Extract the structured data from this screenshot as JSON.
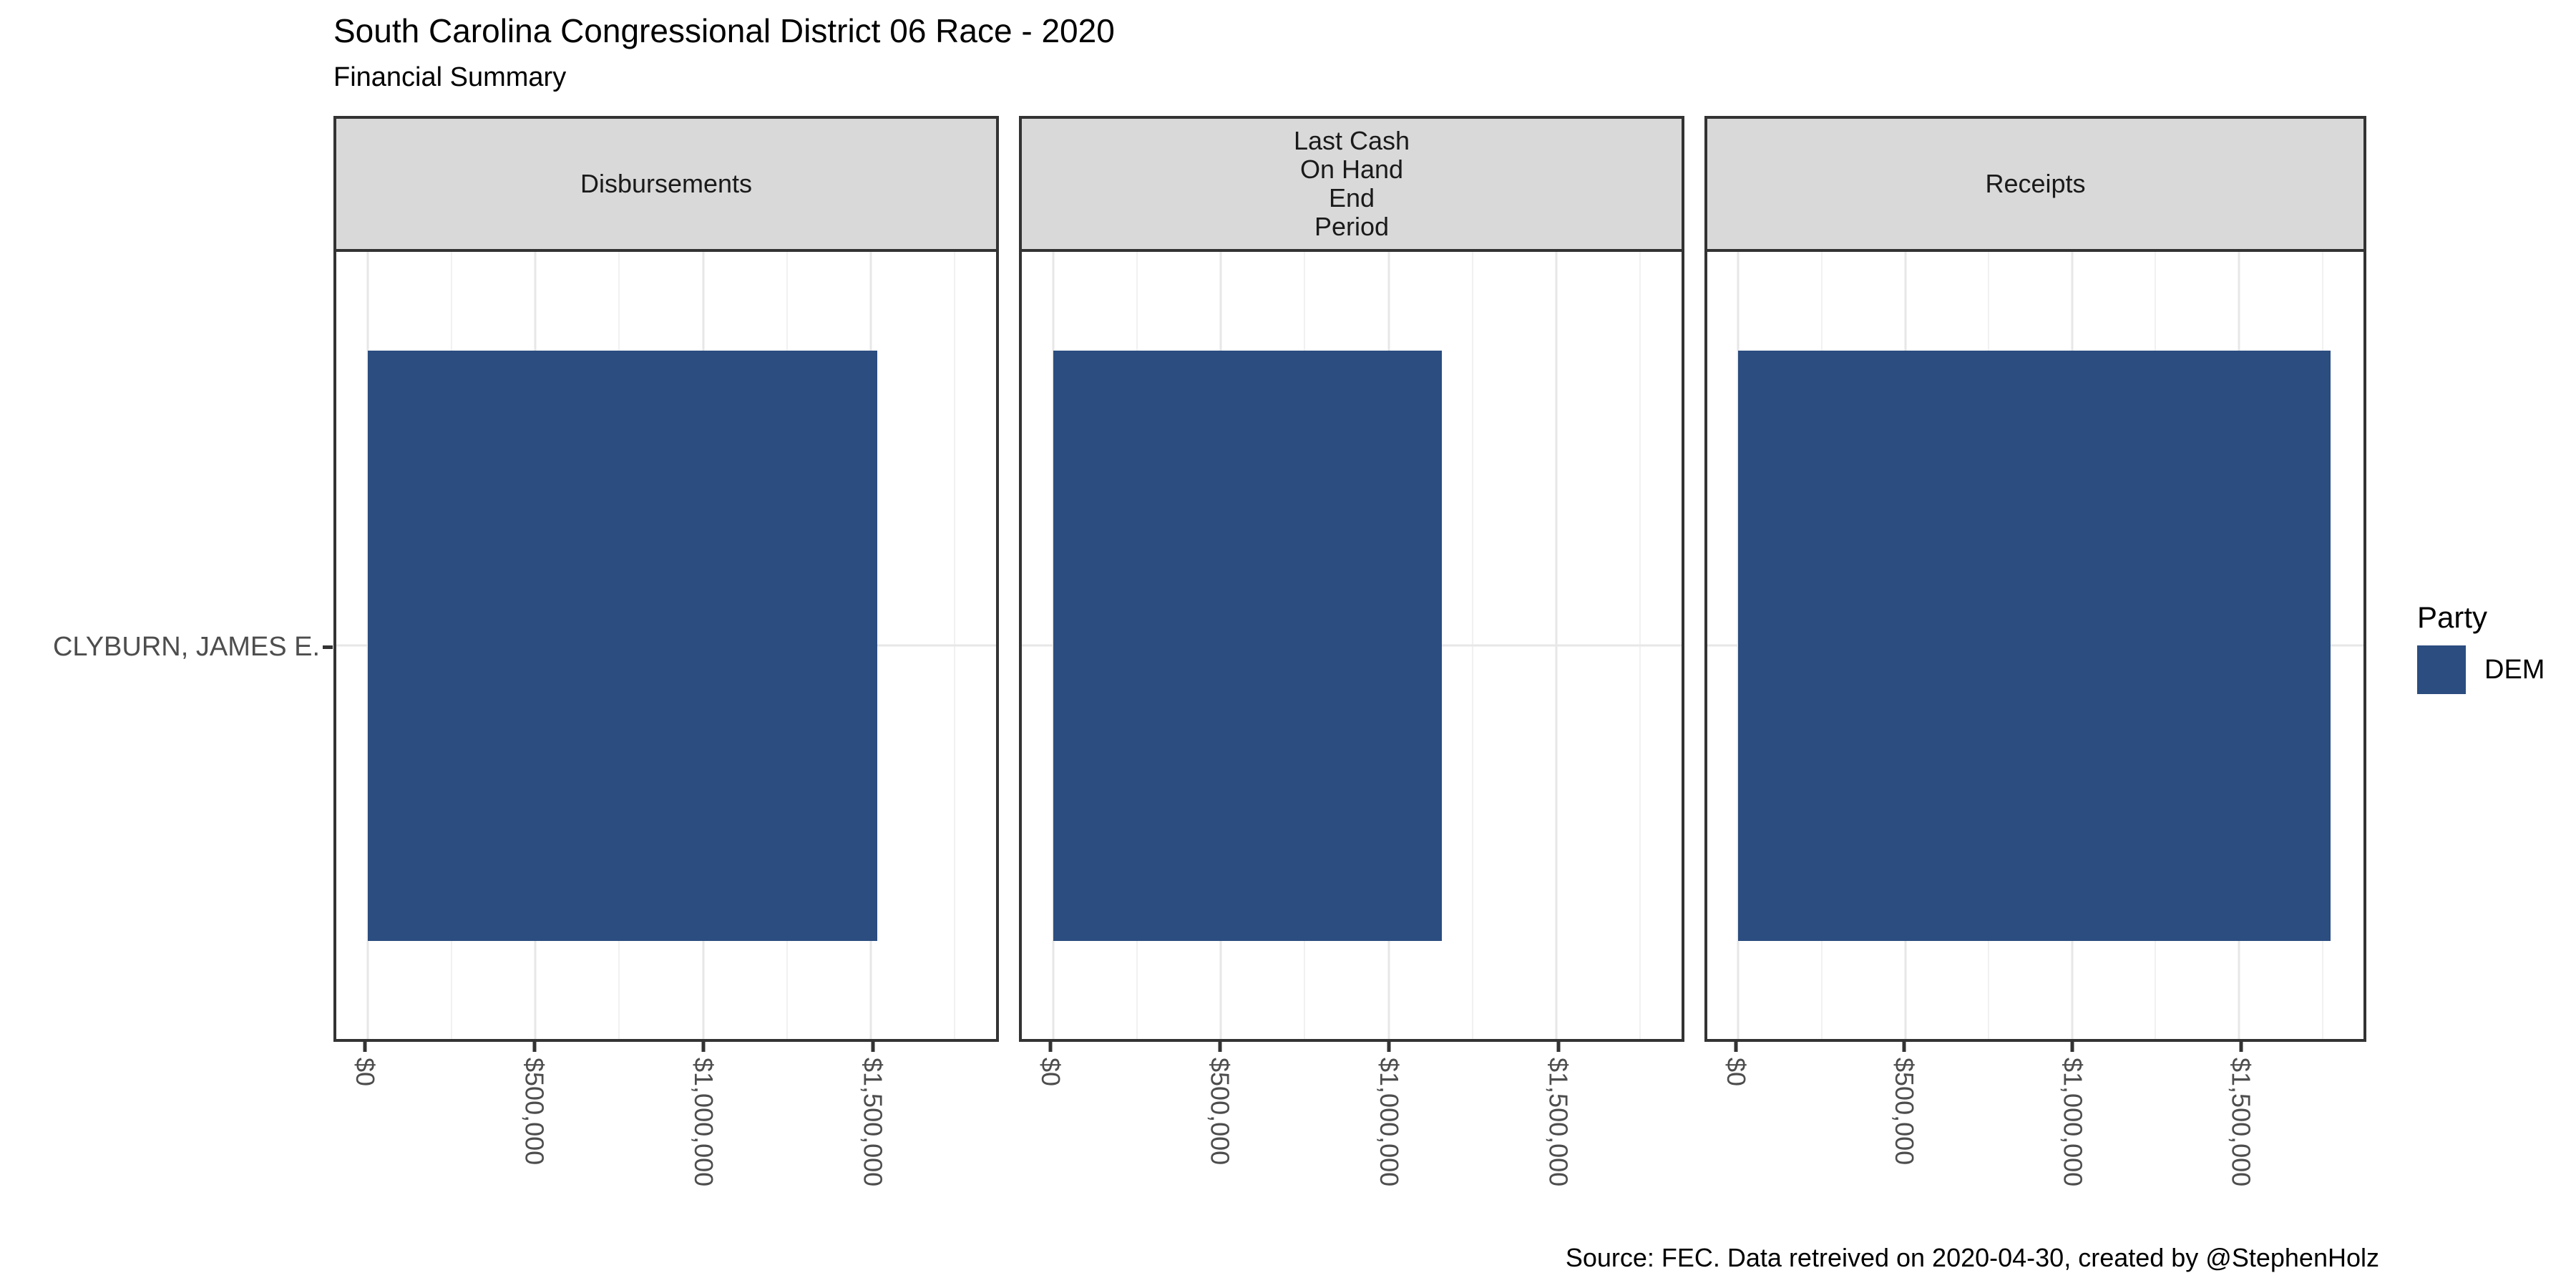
{
  "chart_data": {
    "type": "bar",
    "orientation": "horizontal",
    "title": "South Carolina Congressional District 06 Race - 2020",
    "subtitle": "Financial Summary",
    "caption": "Source: FEC. Data retreived on 2020-04-30, created by @StephenHolz",
    "categories": [
      "CLYBURN, JAMES E."
    ],
    "facets": [
      {
        "strip_label": "Disbursements",
        "values": [
          1518000
        ]
      },
      {
        "strip_label": "Last Cash\nOn Hand\nEnd\nPeriod",
        "values": [
          1158000
        ]
      },
      {
        "strip_label": "Receipts",
        "values": [
          1774000
        ]
      }
    ],
    "xlim": [
      -93000,
      1873000
    ],
    "x_ticks": [
      {
        "value": 0,
        "label": "$0"
      },
      {
        "value": 500000,
        "label": "$500,000"
      },
      {
        "value": 1000000,
        "label": "$1,000,000"
      },
      {
        "value": 1500000,
        "label": "$1,500,000"
      }
    ],
    "x_minor_ticks": [
      250000,
      750000,
      1250000,
      1750000
    ],
    "grid": "major and minor vertical, major horizontal at category",
    "legend_position": "right",
    "bar_fill_fraction_of_row": 0.75
  },
  "legend": {
    "title": "Party",
    "items": [
      {
        "label": "DEM",
        "color": "#2B4D80"
      }
    ]
  },
  "colors": {
    "bar": "#2B4D80",
    "strip_background": "#D9D9D9",
    "panel_border": "#333333",
    "grid_major": "#E7E7E7",
    "grid_minor": "#F1F1F1",
    "axis_text": "#4D4D4D",
    "tick_mark": "#333333"
  },
  "layout": {
    "facet_lefts": [
      466,
      1424,
      2382
    ],
    "facet_widths": [
      930,
      930,
      925
    ]
  }
}
